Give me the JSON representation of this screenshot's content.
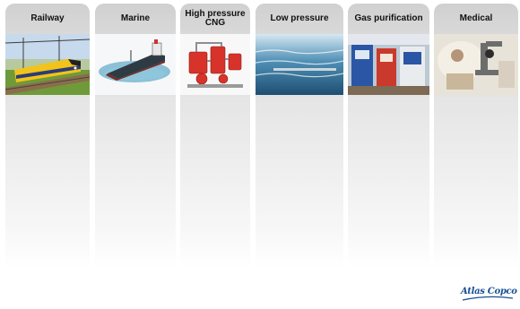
{
  "segments": [
    {
      "label": "Railway"
    },
    {
      "label": "Marine"
    },
    {
      "label": "High pressure\nCNG"
    },
    {
      "label": "Low pressure"
    },
    {
      "label": "Gas purification"
    },
    {
      "label": "Medical"
    }
  ],
  "brand": {
    "logo_text": "Atlas Copco",
    "color": "#1a4f93"
  },
  "icons": [
    "train-photo-icon",
    "ship-photo-icon",
    "compressor-photo-icon",
    "water-photo-icon",
    "gas-station-photo-icon",
    "lab-microscope-photo-icon"
  ]
}
